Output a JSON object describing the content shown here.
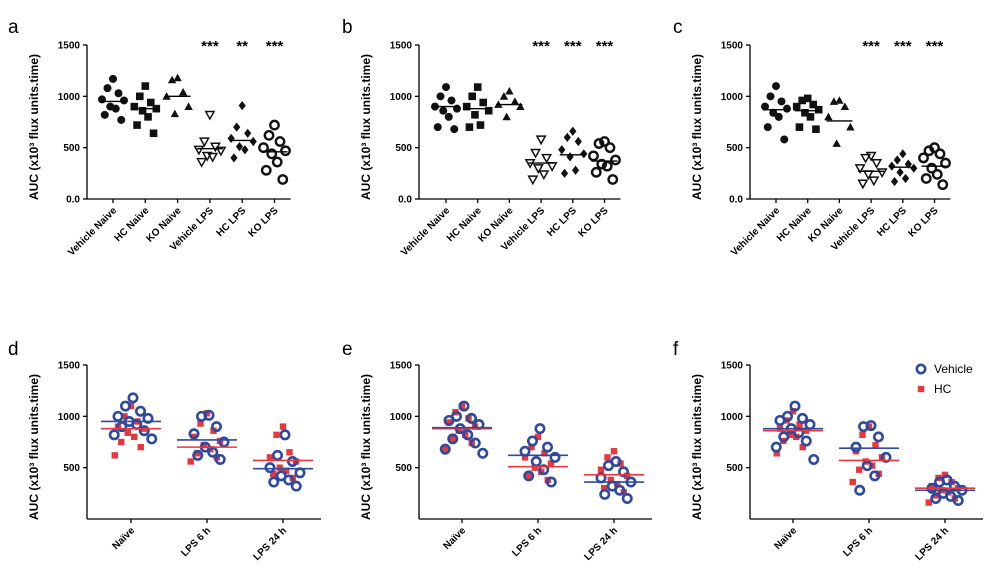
{
  "legend": [
    {
      "label": "Vehicle",
      "color": "#2e4a9e",
      "marker": "open-circle"
    },
    {
      "label": "HC",
      "color": "#e8373d",
      "marker": "filled-square"
    }
  ],
  "chart_data": [
    {
      "letter": "a",
      "type": "scatter",
      "ylabel": "AUC (x10³ flux units.time)",
      "yticks": [
        "0.0",
        "500",
        "1000",
        "1500"
      ],
      "ytick_values": [
        0,
        500,
        1000,
        1500
      ],
      "ylim": [
        0,
        1500
      ],
      "categories": [
        "Vehicle Naive",
        "HC Naive",
        "KO Naive",
        "Vehicle LPS",
        "HC LPS",
        "KO LPS"
      ],
      "markers": [
        "filled-circle",
        "filled-square",
        "filled-triangle",
        "open-triangle-down",
        "filled-diamond",
        "open-circle"
      ],
      "significance": [
        "",
        "",
        "",
        "***",
        "**",
        "***"
      ],
      "groups": [
        {
          "points": [
            1170,
            1080,
            1030,
            970,
            960,
            900,
            880,
            820,
            770
          ],
          "mean": 950
        },
        {
          "points": [
            1100,
            1000,
            940,
            900,
            880,
            860,
            800,
            720,
            640
          ],
          "mean": 880
        },
        {
          "points": [
            1180,
            1160,
            1040,
            1000,
            900,
            830
          ],
          "mean": 1000
        },
        {
          "points": [
            820,
            560,
            510,
            480,
            470,
            420,
            410,
            360
          ],
          "mean": 490
        },
        {
          "points": [
            910,
            700,
            640,
            590,
            560,
            510,
            480,
            400
          ],
          "mean": 570
        },
        {
          "points": [
            720,
            620,
            560,
            500,
            470,
            440,
            360,
            280,
            190
          ],
          "mean": 460
        }
      ]
    },
    {
      "letter": "b",
      "type": "scatter",
      "ylabel": "AUC (x10³ flux units.time)",
      "yticks": [
        "0.0",
        "500",
        "1000",
        "1500"
      ],
      "ytick_values": [
        0,
        500,
        1000,
        1500
      ],
      "ylim": [
        0,
        1500
      ],
      "categories": [
        "Vehicle Naive",
        "HC Naive",
        "KO Naive",
        "Vehicle LPS",
        "HC LPS",
        "KO LPS"
      ],
      "markers": [
        "filled-circle",
        "filled-square",
        "filled-triangle",
        "open-triangle-down",
        "filled-diamond",
        "open-circle"
      ],
      "significance": [
        "",
        "",
        "",
        "***",
        "***",
        "***"
      ],
      "groups": [
        {
          "points": [
            1090,
            1000,
            960,
            900,
            880,
            860,
            800,
            700,
            680
          ],
          "mean": 900
        },
        {
          "points": [
            1090,
            1000,
            940,
            900,
            860,
            820,
            720,
            700
          ],
          "mean": 880
        },
        {
          "points": [
            1050,
            1000,
            950,
            920,
            900,
            800
          ],
          "mean": 920
        },
        {
          "points": [
            580,
            450,
            400,
            350,
            320,
            300,
            240,
            190
          ],
          "mean": 350
        },
        {
          "points": [
            660,
            600,
            560,
            480,
            440,
            410,
            280,
            250
          ],
          "mean": 430
        },
        {
          "points": [
            560,
            540,
            500,
            420,
            380,
            340,
            320,
            260,
            190
          ],
          "mean": 370
        }
      ]
    },
    {
      "letter": "c",
      "type": "scatter",
      "ylabel": "AUC (x10³ flux units.time)",
      "yticks": [
        "0.0",
        "500",
        "1000",
        "1500"
      ],
      "ytick_values": [
        0,
        500,
        1000,
        1500
      ],
      "ylim": [
        0,
        1500
      ],
      "categories": [
        "Vehicle Naive",
        "HC Naive",
        "KO Naive",
        "Vehicle LPS",
        "HC LPS",
        "KO LPS"
      ],
      "markers": [
        "filled-circle",
        "filled-square",
        "filled-triangle",
        "open-triangle-down",
        "filled-diamond",
        "open-circle"
      ],
      "significance": [
        "",
        "",
        "",
        "***",
        "***",
        "***"
      ],
      "groups": [
        {
          "points": [
            1100,
            1000,
            950,
            900,
            880,
            840,
            800,
            700,
            580
          ],
          "mean": 870
        },
        {
          "points": [
            980,
            960,
            920,
            900,
            870,
            840,
            800,
            700,
            680
          ],
          "mean": 860
        },
        {
          "points": [
            960,
            950,
            900,
            800,
            700,
            540
          ],
          "mean": 760
        },
        {
          "points": [
            420,
            400,
            350,
            300,
            260,
            240,
            180,
            150
          ],
          "mean": 270
        },
        {
          "points": [
            440,
            380,
            340,
            320,
            300,
            260,
            200,
            170
          ],
          "mean": 310
        },
        {
          "points": [
            500,
            470,
            440,
            400,
            350,
            300,
            240,
            200,
            140
          ],
          "mean": 320
        }
      ]
    },
    {
      "letter": "d",
      "type": "scatter",
      "ylabel": "AUC (x10³ flux units.time)",
      "yticks": [
        "500",
        "1000",
        "1500"
      ],
      "ytick_values": [
        500,
        1000,
        1500
      ],
      "ylim": [
        0,
        1500
      ],
      "categories": [
        "Naïve",
        "LPS 6 h",
        "LPS 24 h"
      ],
      "series": [
        {
          "name": "Vehicle",
          "groups": [
            {
              "points": [
                1180,
                1100,
                1050,
                1000,
                980,
                950,
                920,
                900,
                860,
                820,
                780
              ],
              "mean": 950
            },
            {
              "points": [
                1010,
                1000,
                900,
                830,
                750,
                700,
                650,
                620,
                580
              ],
              "mean": 770
            },
            {
              "points": [
                820,
                620,
                560,
                500,
                450,
                420,
                380,
                360,
                320
              ],
              "mean": 490
            }
          ]
        },
        {
          "name": "HC",
          "groups": [
            {
              "points": [
                1100,
                1000,
                950,
                900,
                880,
                840,
                800,
                750,
                700,
                620
              ],
              "mean": 880
            },
            {
              "points": [
                1030,
                930,
                860,
                800,
                760,
                720,
                680,
                640,
                600,
                560
              ],
              "mean": 700
            },
            {
              "points": [
                900,
                820,
                650,
                600,
                560,
                500,
                470,
                440,
                400
              ],
              "mean": 570
            }
          ]
        }
      ]
    },
    {
      "letter": "e",
      "type": "scatter",
      "ylabel": "AUC (x10³ flux units.time)",
      "yticks": [
        "500",
        "1000",
        "1500"
      ],
      "ytick_values": [
        500,
        1000,
        1500
      ],
      "ylim": [
        0,
        1500
      ],
      "categories": [
        "Naïve",
        "LPS 6 h",
        "LPS 24 h"
      ],
      "series": [
        {
          "name": "Vehicle",
          "groups": [
            {
              "points": [
                1100,
                1000,
                980,
                960,
                920,
                880,
                820,
                780,
                740,
                680,
                640
              ],
              "mean": 890
            },
            {
              "points": [
                880,
                760,
                700,
                660,
                600,
                560,
                480,
                420,
                360
              ],
              "mean": 620
            },
            {
              "points": [
                560,
                520,
                460,
                400,
                360,
                320,
                280,
                240,
                200
              ],
              "mean": 360
            }
          ]
        },
        {
          "name": "HC",
          "groups": [
            {
              "points": [
                1100,
                1040,
                980,
                940,
                900,
                860,
                820,
                780,
                740,
                680
              ],
              "mean": 880
            },
            {
              "points": [
                800,
                700,
                640,
                600,
                540,
                500,
                460,
                420,
                380
              ],
              "mean": 510
            },
            {
              "points": [
                660,
                600,
                540,
                480,
                420,
                380,
                340,
                300,
                260
              ],
              "mean": 430
            }
          ]
        }
      ]
    },
    {
      "letter": "f",
      "type": "scatter",
      "ylabel": "AUC (x10³ flux units.time)",
      "yticks": [
        "500",
        "1000",
        "1500"
      ],
      "ytick_values": [
        500,
        1000,
        1500
      ],
      "ylim": [
        0,
        1500
      ],
      "categories": [
        "Naïve",
        "LPS 6 h",
        "LPS 24 h"
      ],
      "legend_position": "top-right",
      "series": [
        {
          "name": "Vehicle",
          "groups": [
            {
              "points": [
                1100,
                1000,
                980,
                960,
                920,
                880,
                840,
                800,
                760,
                700,
                580
              ],
              "mean": 880
            },
            {
              "points": [
                910,
                900,
                800,
                700,
                600,
                520,
                420,
                280
              ],
              "mean": 690
            },
            {
              "points": [
                380,
                360,
                320,
                300,
                280,
                250,
                220,
                200,
                180
              ],
              "mean": 280
            }
          ]
        },
        {
          "name": "HC",
          "groups": [
            {
              "points": [
                1050,
                960,
                920,
                880,
                860,
                820,
                800,
                760,
                700,
                640
              ],
              "mean": 860
            },
            {
              "points": [
                900,
                820,
                720,
                660,
                600,
                560,
                520,
                480,
                440,
                360
              ],
              "mean": 570
            },
            {
              "points": [
                430,
                400,
                360,
                320,
                300,
                280,
                260,
                230,
                200,
                160
              ],
              "mean": 300
            }
          ]
        }
      ]
    }
  ]
}
